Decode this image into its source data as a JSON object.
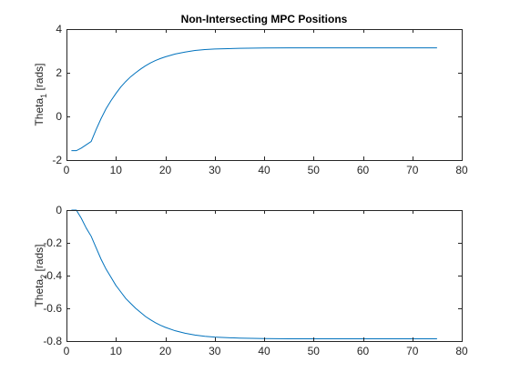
{
  "chart_data": [
    {
      "type": "line",
      "title": "Non-Intersecting MPC Positions",
      "xlabel": "",
      "ylabel": {
        "base": "Theta",
        "sub": "1",
        "suffix": " [rads]"
      },
      "xlim": [
        0,
        80
      ],
      "ylim": [
        -2,
        4
      ],
      "xticks": [
        0,
        10,
        20,
        30,
        40,
        50,
        60,
        70,
        80
      ],
      "yticks": [
        -2,
        0,
        2,
        4
      ],
      "grid": false,
      "series": [
        {
          "color": "#0072BD",
          "x": [
            1,
            2,
            3,
            4,
            5,
            6,
            7,
            8,
            9,
            10,
            11,
            12,
            13,
            14,
            15,
            16,
            17,
            18,
            19,
            20,
            22,
            24,
            26,
            28,
            30,
            35,
            40,
            45,
            50,
            55,
            60,
            65,
            70,
            75
          ],
          "y": [
            -1.57,
            -1.57,
            -1.45,
            -1.3,
            -1.15,
            -0.6,
            -0.1,
            0.35,
            0.72,
            1.05,
            1.35,
            1.6,
            1.82,
            2.0,
            2.17,
            2.32,
            2.45,
            2.56,
            2.65,
            2.73,
            2.86,
            2.95,
            3.02,
            3.06,
            3.09,
            3.12,
            3.135,
            3.14,
            3.14,
            3.14,
            3.14,
            3.14,
            3.14,
            3.14
          ]
        }
      ]
    },
    {
      "type": "line",
      "title": "",
      "xlabel": "",
      "ylabel": {
        "base": "Theta",
        "sub": "2",
        "suffix": " [rads]"
      },
      "xlim": [
        0,
        80
      ],
      "ylim": [
        -0.8,
        0
      ],
      "xticks": [
        0,
        10,
        20,
        30,
        40,
        50,
        60,
        70,
        80
      ],
      "yticks": [
        -0.8,
        -0.6,
        -0.4,
        -0.2,
        0
      ],
      "ytick_labels": [
        "-0.8",
        "-0.6",
        "-0.4",
        "-0.2",
        "0"
      ],
      "grid": false,
      "series": [
        {
          "color": "#0072BD",
          "x": [
            1,
            2,
            3,
            4,
            5,
            6,
            7,
            8,
            9,
            10,
            11,
            12,
            13,
            14,
            15,
            16,
            17,
            18,
            19,
            20,
            22,
            24,
            26,
            28,
            30,
            35,
            40,
            45,
            50,
            55,
            60,
            65,
            70,
            75
          ],
          "y": [
            0.0,
            0.0,
            -0.05,
            -0.11,
            -0.16,
            -0.23,
            -0.3,
            -0.36,
            -0.41,
            -0.46,
            -0.5,
            -0.54,
            -0.57,
            -0.6,
            -0.625,
            -0.65,
            -0.67,
            -0.688,
            -0.703,
            -0.716,
            -0.737,
            -0.752,
            -0.763,
            -0.771,
            -0.776,
            -0.782,
            -0.785,
            -0.786,
            -0.786,
            -0.786,
            -0.786,
            -0.786,
            -0.786,
            -0.786
          ]
        }
      ]
    }
  ]
}
